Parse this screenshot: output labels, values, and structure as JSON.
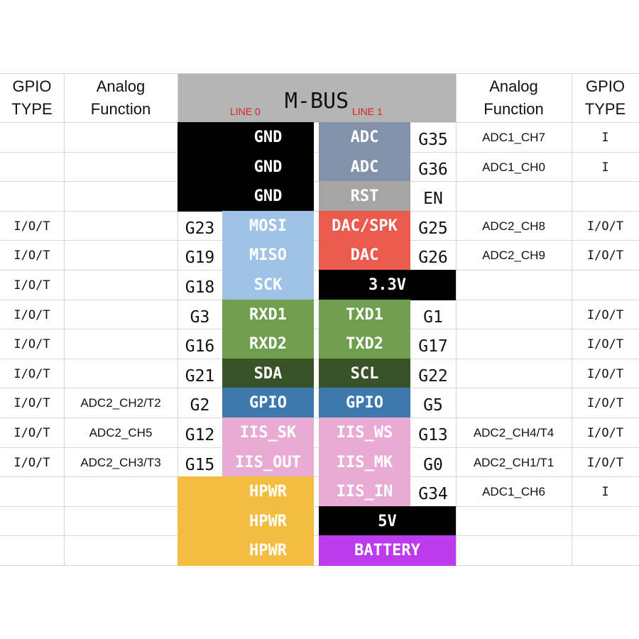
{
  "header": {
    "left_type_l1": "GPIO",
    "left_type_l2": "TYPE",
    "left_analog_l1": "Analog",
    "left_analog_l2": "Function",
    "mbus_title": "M-BUS",
    "line0": "LINE 0",
    "line1": "LINE 1",
    "right_analog_l1": "Analog",
    "right_analog_l2": "Function",
    "right_type_l1": "GPIO",
    "right_type_l2": "TYPE"
  },
  "colors": {
    "black": "#000000",
    "slate": "#8492a9",
    "gray": "#a5a5a5",
    "lightblue": "#9fc3e6",
    "red": "#ea5b4e",
    "green": "#6f9e4e",
    "darkgreen": "#3a5228",
    "steelblue": "#3e79ad",
    "pink": "#e8acd4",
    "orange": "#f5bd3f",
    "purple": "#bb3bed"
  },
  "rows": [
    {
      "ltype": "",
      "lanalog": "",
      "lpin": "",
      "l0": "GND",
      "l0c": "black",
      "l0wide": true,
      "l1": "ADC",
      "l1c": "slate",
      "rpin": "G35",
      "ranalog": "ADC1_CH7",
      "rtype": "I"
    },
    {
      "ltype": "",
      "lanalog": "",
      "lpin": "",
      "l0": "GND",
      "l0c": "black",
      "l0wide": true,
      "l1": "ADC",
      "l1c": "slate",
      "rpin": "G36",
      "ranalog": "ADC1_CH0",
      "rtype": "I"
    },
    {
      "ltype": "",
      "lanalog": "",
      "lpin": "",
      "l0": "GND",
      "l0c": "black",
      "l0wide": true,
      "l1": "RST",
      "l1c": "gray",
      "rpin": "EN",
      "ranalog": "",
      "rtype": ""
    },
    {
      "ltype": "I/O/T",
      "lanalog": "",
      "lpin": "G23",
      "l0": "MOSI",
      "l0c": "lightblue",
      "l0wide": false,
      "l1": "DAC/SPK",
      "l1c": "red",
      "rpin": "G25",
      "ranalog": "ADC2_CH8",
      "rtype": "I/O/T"
    },
    {
      "ltype": "I/O/T",
      "lanalog": "",
      "lpin": "G19",
      "l0": "MISO",
      "l0c": "lightblue",
      "l0wide": false,
      "l1": "DAC",
      "l1c": "red",
      "rpin": "G26",
      "ranalog": "ADC2_CH9",
      "rtype": "I/O/T"
    },
    {
      "ltype": "I/O/T",
      "lanalog": "",
      "lpin": "G18",
      "l0": "SCK",
      "l0c": "lightblue",
      "l0wide": false,
      "l1": "3.3V",
      "l1c": "black",
      "l1wide": true,
      "rpin": "",
      "ranalog": "",
      "rtype": ""
    },
    {
      "ltype": "I/O/T",
      "lanalog": "",
      "lpin": "G3",
      "l0": "RXD1",
      "l0c": "green",
      "l0wide": false,
      "l1": "TXD1",
      "l1c": "green",
      "rpin": "G1",
      "ranalog": "",
      "rtype": "I/O/T"
    },
    {
      "ltype": "I/O/T",
      "lanalog": "",
      "lpin": "G16",
      "l0": "RXD2",
      "l0c": "green",
      "l0wide": false,
      "l1": "TXD2",
      "l1c": "green",
      "rpin": "G17",
      "ranalog": "",
      "rtype": "I/O/T"
    },
    {
      "ltype": "I/O/T",
      "lanalog": "",
      "lpin": "G21",
      "l0": "SDA",
      "l0c": "darkgreen",
      "l0wide": false,
      "l1": "SCL",
      "l1c": "darkgreen",
      "rpin": "G22",
      "ranalog": "",
      "rtype": "I/O/T"
    },
    {
      "ltype": "I/O/T",
      "lanalog": "ADC2_CH2/T2",
      "lpin": "G2",
      "l0": "GPIO",
      "l0c": "steelblue",
      "l0wide": false,
      "l1": "GPIO",
      "l1c": "steelblue",
      "rpin": "G5",
      "ranalog": "",
      "rtype": "I/O/T"
    },
    {
      "ltype": "I/O/T",
      "lanalog": "ADC2_CH5",
      "lpin": "G12",
      "l0": "IIS_SK",
      "l0c": "pink",
      "l0wide": false,
      "l1": "IIS_WS",
      "l1c": "pink",
      "rpin": "G13",
      "ranalog": "ADC2_CH4/T4",
      "rtype": "I/O/T"
    },
    {
      "ltype": "I/O/T",
      "lanalog": "ADC2_CH3/T3",
      "lpin": "G15",
      "l0": "IIS_OUT",
      "l0c": "pink",
      "l0wide": false,
      "l1": "IIS_MK",
      "l1c": "pink",
      "rpin": "G0",
      "ranalog": "ADC2_CH1/T1",
      "rtype": "I/O/T"
    },
    {
      "ltype": "",
      "lanalog": "",
      "lpin": "",
      "l0": "HPWR",
      "l0c": "orange",
      "l0wide": true,
      "l1": "IIS_IN",
      "l1c": "pink",
      "rpin": "G34",
      "ranalog": "ADC1_CH6",
      "rtype": "I"
    },
    {
      "ltype": "",
      "lanalog": "",
      "lpin": "",
      "l0": "HPWR",
      "l0c": "orange",
      "l0wide": true,
      "l1": "5V",
      "l1c": "black",
      "l1wide": true,
      "rpin": "",
      "ranalog": "",
      "rtype": ""
    },
    {
      "ltype": "",
      "lanalog": "",
      "lpin": "",
      "l0": "HPWR",
      "l0c": "orange",
      "l0wide": true,
      "l1": "BATTERY",
      "l1c": "purple",
      "l1wide": true,
      "rpin": "",
      "ranalog": "",
      "rtype": ""
    }
  ]
}
